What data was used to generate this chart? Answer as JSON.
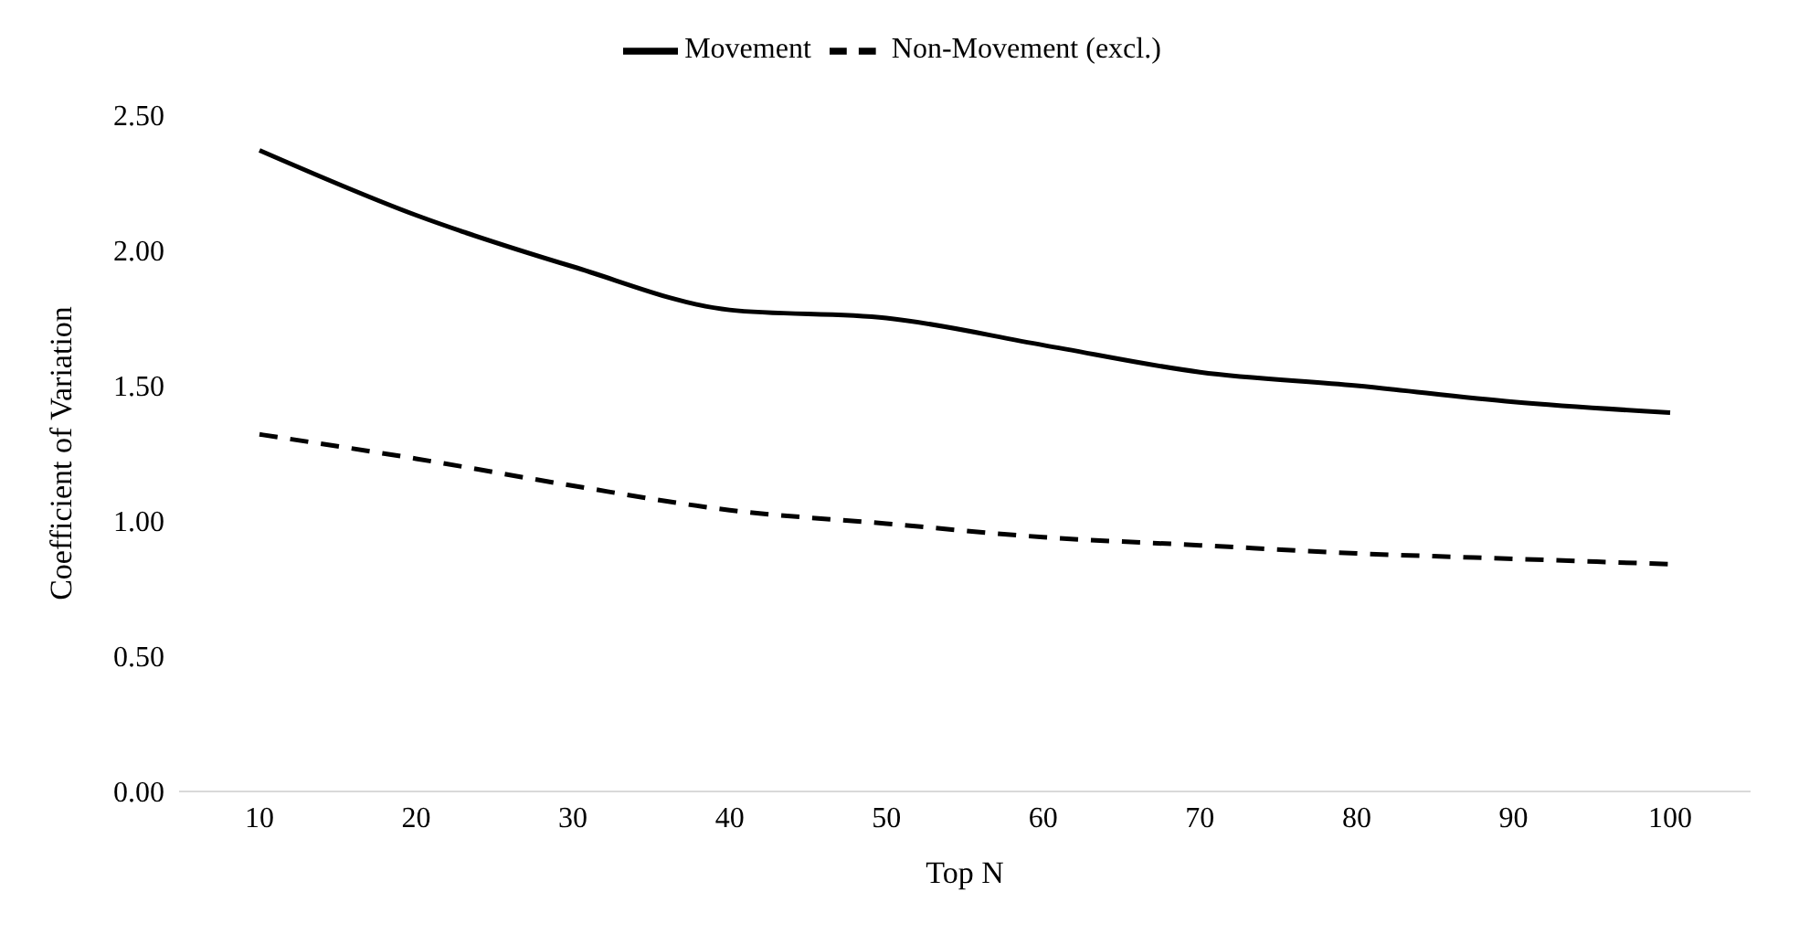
{
  "chart_data": {
    "type": "line",
    "categories": [
      "10",
      "20",
      "30",
      "40",
      "50",
      "60",
      "70",
      "80",
      "90",
      "100"
    ],
    "series": [
      {
        "name": "Movement",
        "color": "#000000",
        "line_style": "solid",
        "values": [
          2.37,
          2.13,
          1.94,
          1.78,
          1.75,
          1.65,
          1.55,
          1.5,
          1.44,
          1.4
        ]
      },
      {
        "name": "Non-Movement (excl.)",
        "color": "#000000",
        "line_style": "dashed",
        "values": [
          1.32,
          1.23,
          1.13,
          1.04,
          0.99,
          0.94,
          0.91,
          0.88,
          0.86,
          0.84
        ]
      }
    ],
    "xlabel": "Top N",
    "ylabel": "Coefficient of Variation",
    "ylim": [
      0,
      2.5
    ],
    "yticks": [
      {
        "value": 0,
        "label": "0.00"
      },
      {
        "value": 0.5,
        "label": "0.50"
      },
      {
        "value": 1,
        "label": "1.00"
      },
      {
        "value": 1.5,
        "label": "1.50"
      },
      {
        "value": 2,
        "label": "2.00"
      },
      {
        "value": 2.5,
        "label": "2.50"
      }
    ],
    "grid": false,
    "legend": "top",
    "marker": "none"
  }
}
